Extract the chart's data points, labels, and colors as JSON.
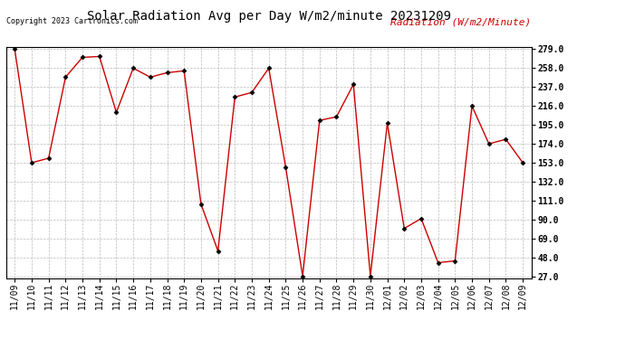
{
  "title": "Solar Radiation Avg per Day W/m2/minute 20231209",
  "copyright_text": "Copyright 2023 Cartronics.com",
  "legend_label": "Radiation (W/m2/Minute)",
  "dates": [
    "11/09",
    "11/10",
    "11/11",
    "11/12",
    "11/13",
    "11/14",
    "11/15",
    "11/16",
    "11/17",
    "11/18",
    "11/19",
    "11/20",
    "11/21",
    "11/22",
    "11/23",
    "11/24",
    "11/25",
    "11/26",
    "11/27",
    "11/28",
    "11/29",
    "11/30",
    "12/01",
    "12/02",
    "12/03",
    "12/04",
    "12/05",
    "12/06",
    "12/07",
    "12/08",
    "12/09"
  ],
  "values": [
    279.0,
    153.0,
    158.0,
    248.0,
    270.0,
    271.0,
    209.0,
    258.0,
    248.0,
    253.0,
    255.0,
    107.0,
    55.0,
    226.0,
    231.0,
    258.0,
    148.0,
    27.0,
    200.0,
    204.0,
    240.0,
    27.0,
    197.0,
    80.0,
    91.0,
    42.0,
    44.0,
    216.0,
    174.0,
    179.0,
    153.0
  ],
  "yticks": [
    27.0,
    48.0,
    69.0,
    90.0,
    111.0,
    132.0,
    153.0,
    174.0,
    195.0,
    216.0,
    237.0,
    258.0,
    279.0
  ],
  "ymin": 27.0,
  "ymax": 279.0,
  "line_color": "#cc0000",
  "marker_color": "#000000",
  "background_color": "#ffffff",
  "grid_color": "#bbbbbb",
  "title_fontsize": 10,
  "copyright_fontsize": 6,
  "legend_fontsize": 8,
  "tick_fontsize": 7,
  "ylabel_color": "#cc0000"
}
